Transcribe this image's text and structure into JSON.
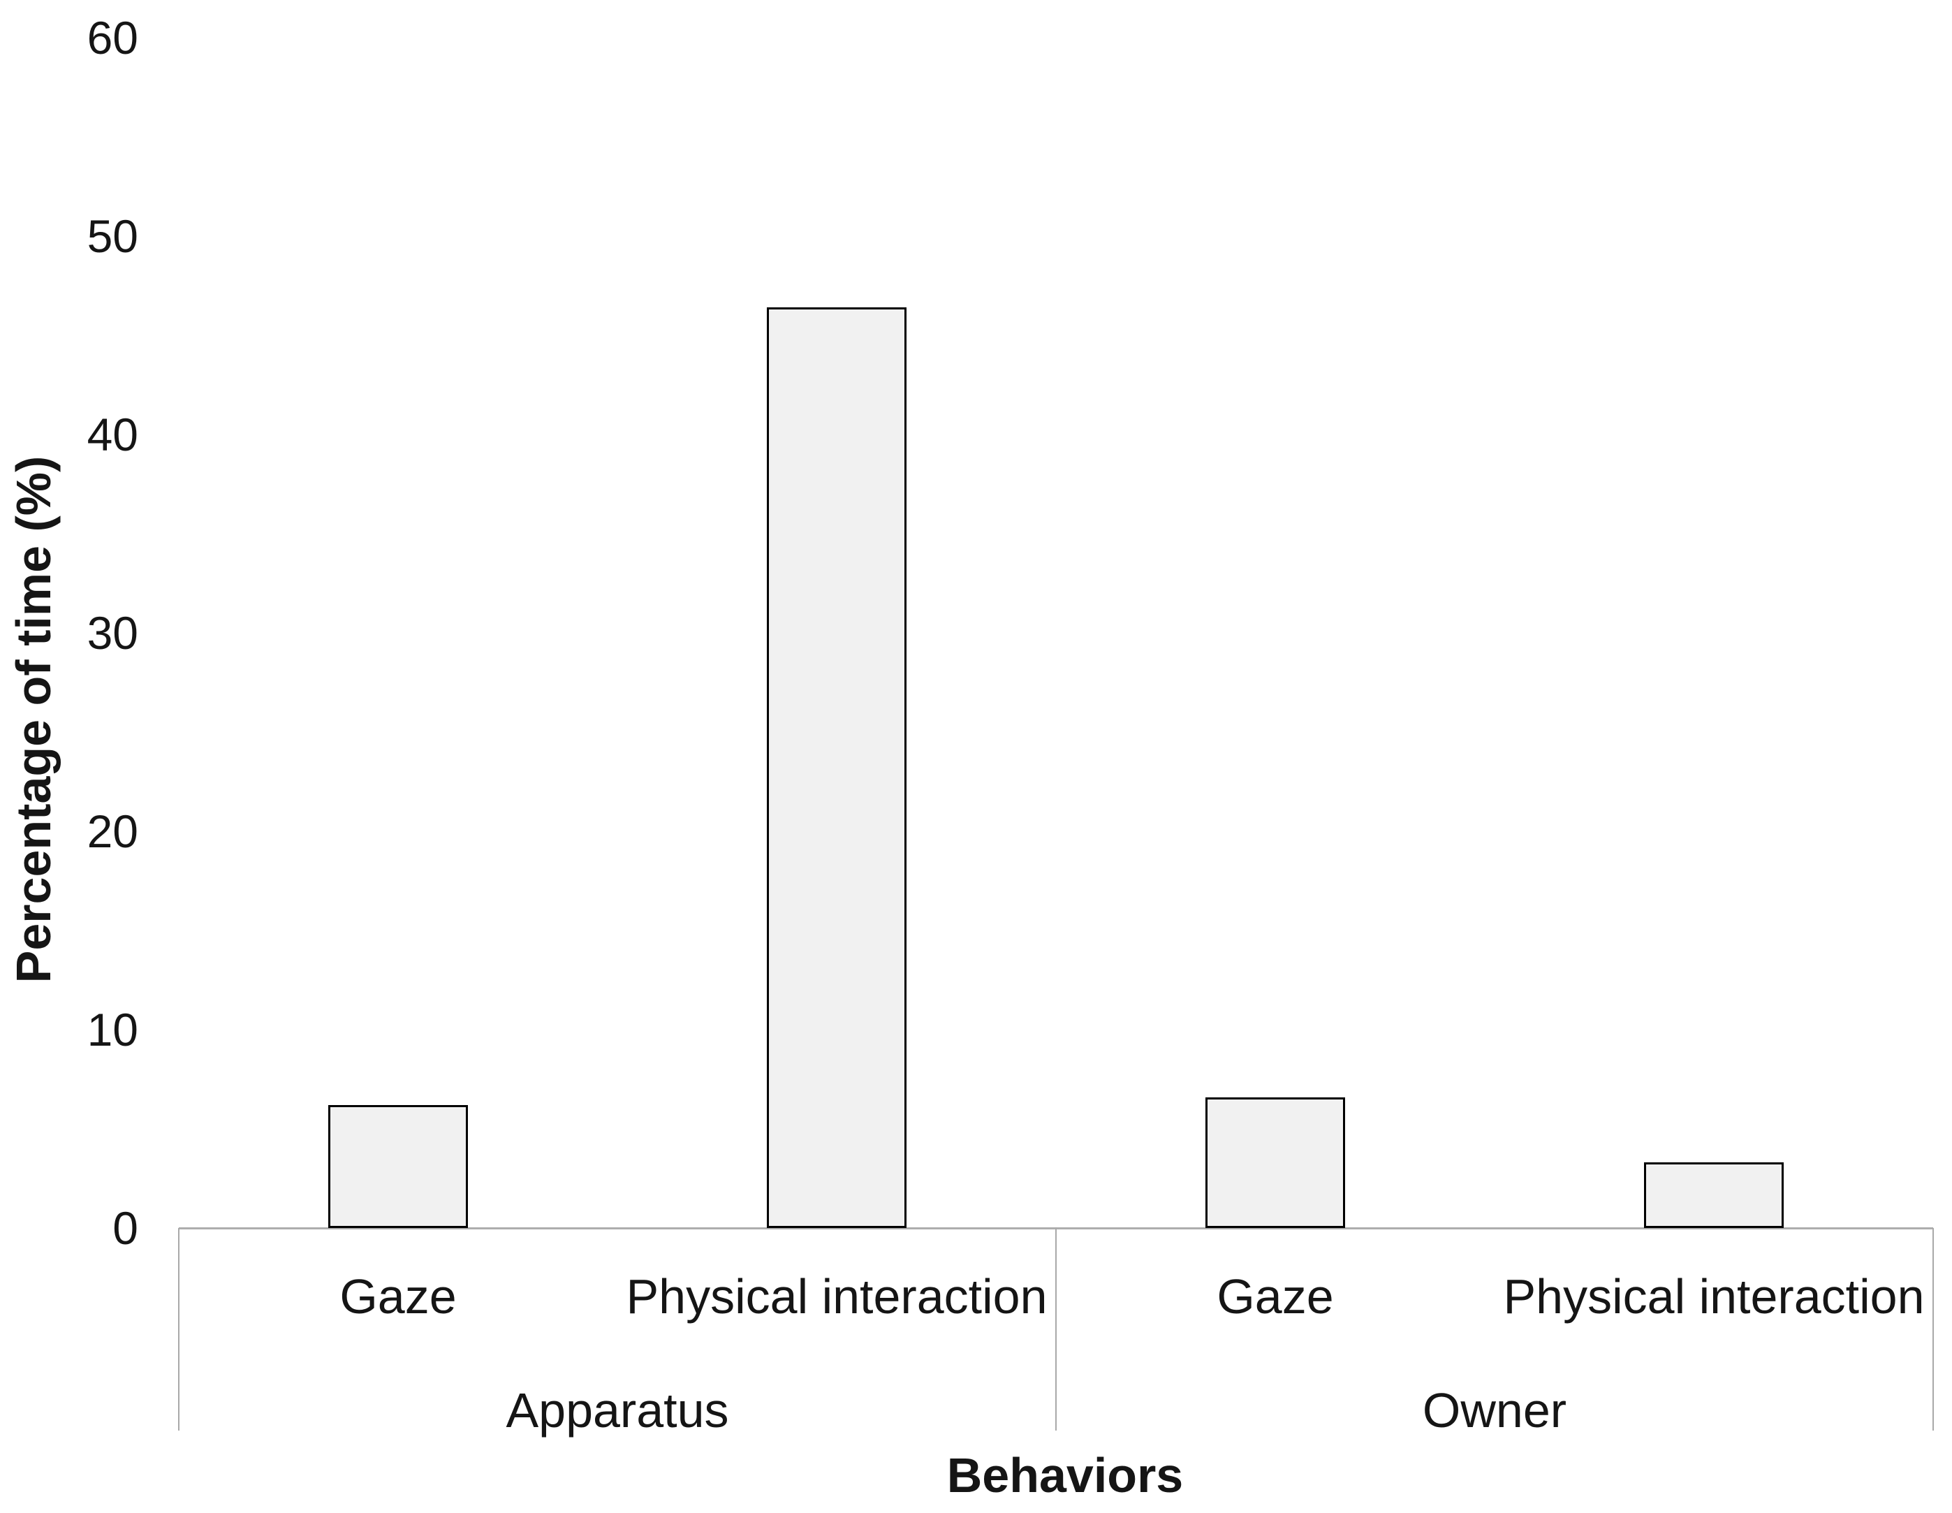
{
  "chart_data": {
    "type": "bar",
    "title": "",
    "xlabel": "Behaviors",
    "ylabel": "Percentage of time (%)",
    "ylim": [
      0,
      60
    ],
    "ytick_step": 10,
    "yticks": [
      0,
      10,
      20,
      30,
      40,
      50,
      60
    ],
    "grid": false,
    "legend": false,
    "groups": [
      {
        "label": "Apparatus",
        "categories": [
          "Gaze",
          "Physical interaction"
        ],
        "values": [
          6.2,
          46.4
        ]
      },
      {
        "label": "Owner",
        "categories": [
          "Gaze",
          "Physical interaction"
        ],
        "values": [
          6.6,
          3.3
        ]
      }
    ],
    "colors": {
      "bar_fill": "#f1f1f1",
      "bar_border": "#000000",
      "axis_line": "#adadad",
      "text": "#151515",
      "background": "#ffffff"
    }
  }
}
